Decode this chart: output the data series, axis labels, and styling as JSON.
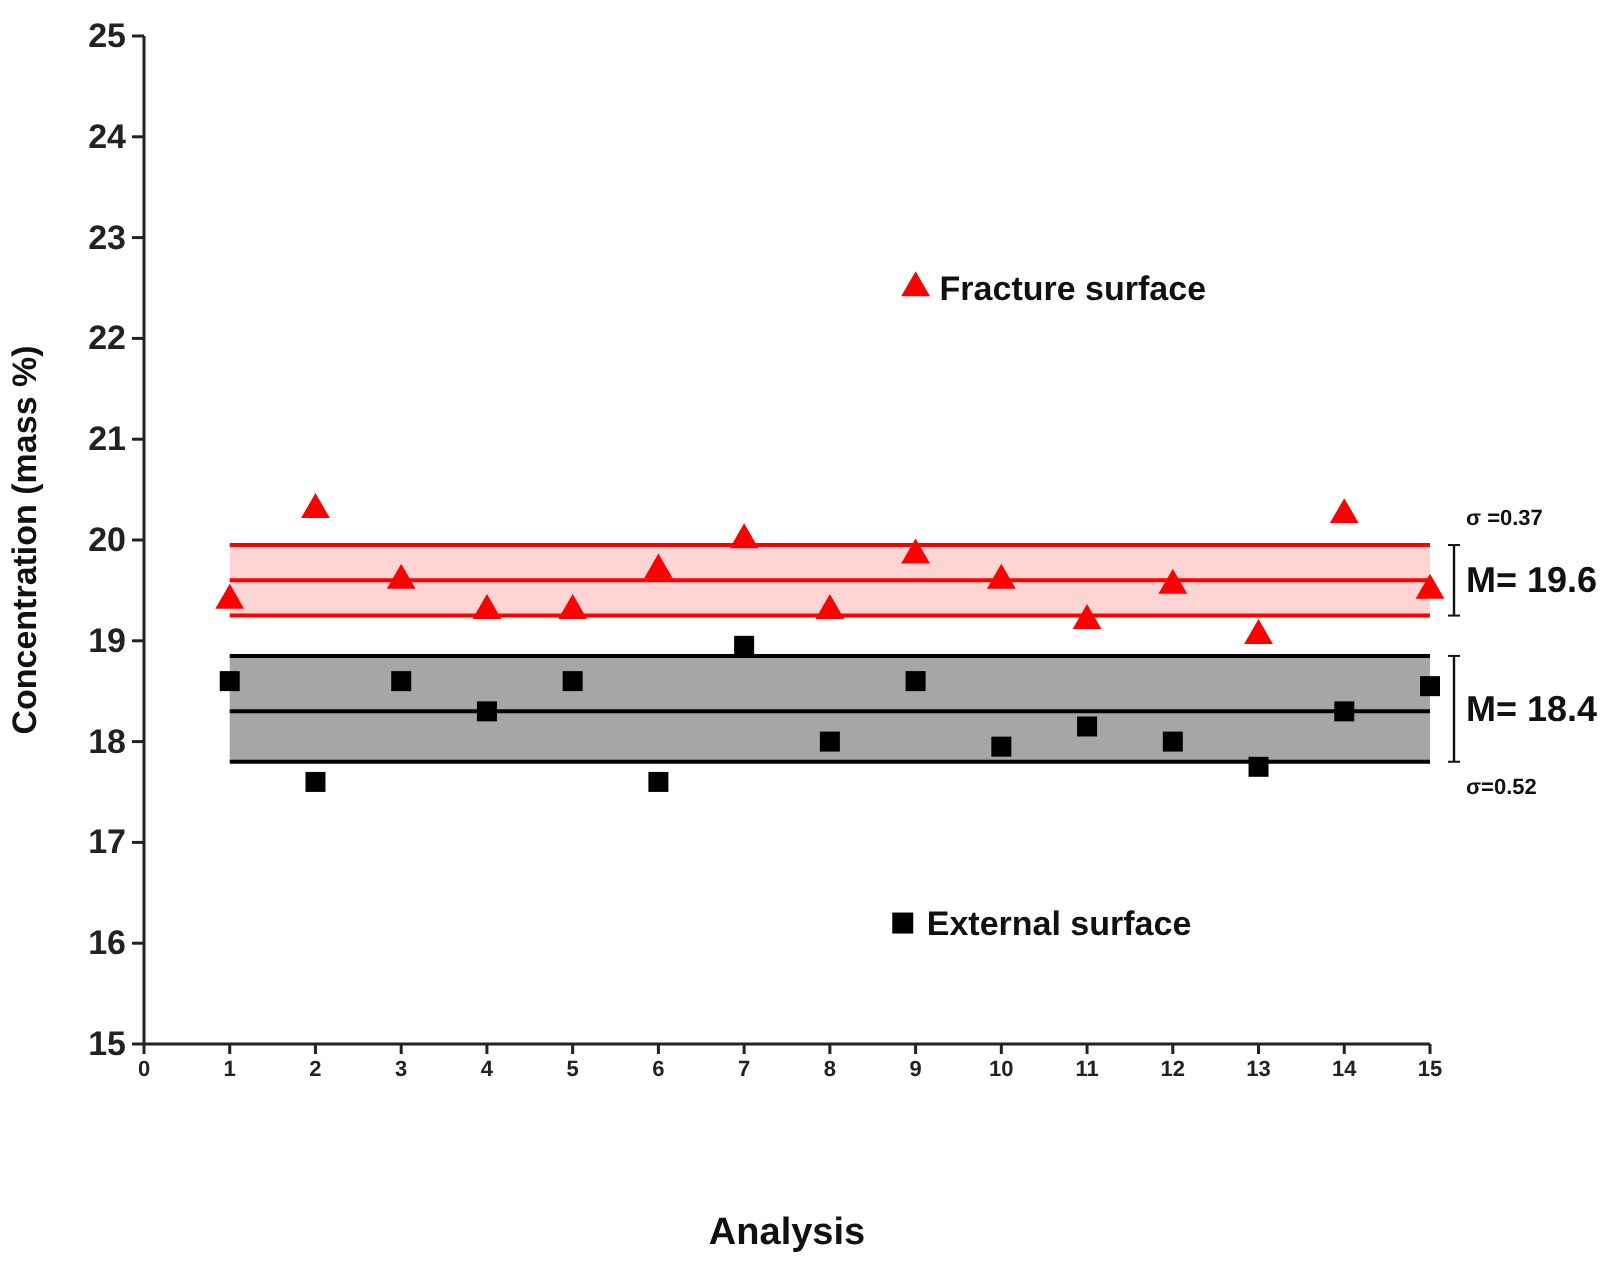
{
  "chart_data": {
    "type": "scatter",
    "xlabel": "Analysis",
    "ylabel": "Concentration (mass %)",
    "x": [
      1,
      2,
      3,
      4,
      5,
      6,
      7,
      8,
      9,
      10,
      11,
      12,
      13,
      14,
      15
    ],
    "series": [
      {
        "name": "Fracture surface",
        "color": "#ff0000",
        "marker": "triangle",
        "values": [
          19.4,
          20.3,
          19.6,
          19.3,
          19.3,
          19.7,
          20.0,
          19.3,
          19.85,
          19.6,
          19.2,
          19.55,
          19.05,
          20.25,
          19.5
        ]
      },
      {
        "name": "External surface",
        "color": "#000000",
        "marker": "square",
        "values": [
          18.6,
          17.6,
          18.6,
          18.3,
          18.6,
          17.6,
          18.95,
          18.0,
          18.6,
          17.95,
          18.15,
          18.0,
          17.75,
          18.3,
          18.55
        ]
      }
    ],
    "bands": [
      {
        "axis": "y",
        "from": 19.25,
        "to": 19.95,
        "color": "#ffd4d4"
      },
      {
        "axis": "y",
        "from": 17.8,
        "to": 18.85,
        "color": "#a6a6a6"
      }
    ],
    "ref_lines": [
      {
        "axis": "y",
        "value": 19.95,
        "color": "#ff0000"
      },
      {
        "axis": "y",
        "value": 19.6,
        "color": "#ff0000"
      },
      {
        "axis": "y",
        "value": 19.25,
        "color": "#ff0000"
      },
      {
        "axis": "y",
        "value": 18.85,
        "color": "#000000"
      },
      {
        "axis": "y",
        "value": 18.3,
        "color": "#000000"
      },
      {
        "axis": "y",
        "value": 17.8,
        "color": "#000000"
      }
    ],
    "annotations": [
      "σ =0.37",
      "M= 19.6",
      "M= 18.4",
      "σ=0.52"
    ],
    "xlim": [
      0,
      15
    ],
    "ylim": [
      15,
      25
    ],
    "xticks": [
      0,
      1,
      2,
      3,
      4,
      5,
      6,
      7,
      8,
      9,
      10,
      11,
      12,
      13,
      14,
      15
    ],
    "yticks": [
      15,
      16,
      17,
      18,
      19,
      20,
      21,
      22,
      23,
      24,
      25
    ],
    "grid": false,
    "legend": "center"
  }
}
